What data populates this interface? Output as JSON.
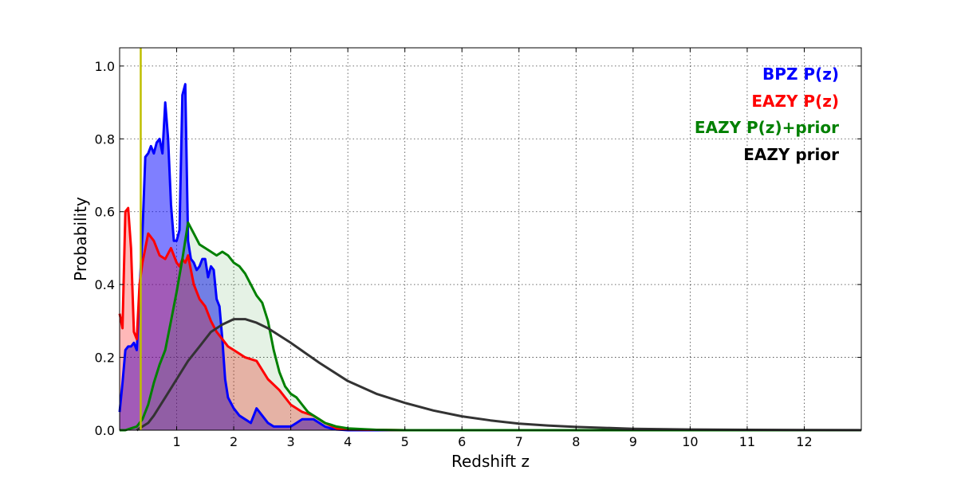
{
  "chart_data": {
    "type": "area",
    "title": "",
    "xlabel": "Redshift z",
    "ylabel": "Probability",
    "xlim": [
      0,
      13
    ],
    "ylim": [
      0,
      1.05
    ],
    "xticks": [
      1,
      2,
      3,
      4,
      5,
      6,
      7,
      8,
      9,
      10,
      11,
      12
    ],
    "yticks": [
      0.0,
      0.2,
      0.4,
      0.6,
      0.8,
      1.0
    ],
    "ytick_labels": [
      "0.0",
      "0.2",
      "0.4",
      "0.6",
      "0.8",
      "1.0"
    ],
    "grid": true,
    "legend_placement": "top-right",
    "vertical_line": {
      "x": 0.37,
      "color": "#bfbf00"
    },
    "series": [
      {
        "name": "BPZ P(z)",
        "color": "#0000ff",
        "fill_color": "#0000ff",
        "fill_opacity": 0.5,
        "x": [
          0.0,
          0.05,
          0.1,
          0.15,
          0.2,
          0.25,
          0.3,
          0.35,
          0.4,
          0.45,
          0.5,
          0.55,
          0.6,
          0.65,
          0.7,
          0.75,
          0.8,
          0.85,
          0.9,
          0.95,
          1.0,
          1.05,
          1.1,
          1.15,
          1.2,
          1.25,
          1.3,
          1.35,
          1.4,
          1.45,
          1.5,
          1.55,
          1.6,
          1.65,
          1.7,
          1.75,
          1.8,
          1.85,
          1.9,
          2.0,
          2.1,
          2.2,
          2.3,
          2.4,
          2.5,
          2.6,
          2.7,
          2.8,
          2.9,
          3.0,
          3.1,
          3.2,
          3.3,
          3.4,
          3.5,
          3.6,
          3.7,
          3.8,
          3.9,
          4.0,
          4.5,
          5,
          6,
          7,
          8,
          9,
          10,
          11,
          12,
          13
        ],
        "values": [
          0.05,
          0.13,
          0.22,
          0.23,
          0.23,
          0.24,
          0.22,
          0.38,
          0.54,
          0.75,
          0.76,
          0.78,
          0.76,
          0.79,
          0.8,
          0.76,
          0.9,
          0.8,
          0.62,
          0.52,
          0.52,
          0.55,
          0.92,
          0.95,
          0.52,
          0.47,
          0.46,
          0.44,
          0.45,
          0.47,
          0.47,
          0.42,
          0.45,
          0.44,
          0.36,
          0.34,
          0.25,
          0.14,
          0.09,
          0.06,
          0.04,
          0.03,
          0.02,
          0.06,
          0.04,
          0.02,
          0.01,
          0.01,
          0.01,
          0.01,
          0.02,
          0.03,
          0.03,
          0.03,
          0.02,
          0.01,
          0.005,
          0.002,
          0.001,
          0.0,
          0.0,
          0.0,
          0.0,
          0.0,
          0.0,
          0.0,
          0.0,
          0.0,
          0.0,
          0.0
        ]
      },
      {
        "name": "EAZY P(z)",
        "color": "#ff0000",
        "fill_color": "#ff0000",
        "fill_opacity": 0.28,
        "x": [
          0.0,
          0.05,
          0.1,
          0.15,
          0.2,
          0.25,
          0.3,
          0.35,
          0.4,
          0.45,
          0.5,
          0.6,
          0.7,
          0.8,
          0.9,
          1.0,
          1.05,
          1.1,
          1.15,
          1.2,
          1.25,
          1.3,
          1.4,
          1.5,
          1.6,
          1.7,
          1.8,
          1.9,
          2.0,
          2.2,
          2.4,
          2.6,
          2.8,
          3.0,
          3.2,
          3.4,
          3.6,
          3.8,
          4.0,
          4.5,
          5,
          6,
          7,
          8,
          9,
          10,
          11,
          12,
          13
        ],
        "values": [
          0.32,
          0.28,
          0.6,
          0.61,
          0.5,
          0.27,
          0.25,
          0.4,
          0.46,
          0.5,
          0.54,
          0.52,
          0.48,
          0.47,
          0.5,
          0.46,
          0.45,
          0.47,
          0.46,
          0.48,
          0.44,
          0.4,
          0.36,
          0.34,
          0.3,
          0.27,
          0.25,
          0.23,
          0.22,
          0.2,
          0.19,
          0.14,
          0.11,
          0.07,
          0.05,
          0.04,
          0.02,
          0.005,
          0.002,
          0.001,
          0.0,
          0.0,
          0.0,
          0.0,
          0.0,
          0.0,
          0.0,
          0.0,
          0.0
        ]
      },
      {
        "name": "EAZY P(z)+prior",
        "color": "#008000",
        "fill_color": "#008000",
        "fill_opacity": 0.1,
        "x": [
          0.0,
          0.1,
          0.2,
          0.3,
          0.4,
          0.5,
          0.6,
          0.7,
          0.8,
          0.9,
          1.0,
          1.1,
          1.2,
          1.3,
          1.4,
          1.5,
          1.6,
          1.7,
          1.8,
          1.9,
          2.0,
          2.1,
          2.2,
          2.3,
          2.4,
          2.5,
          2.6,
          2.7,
          2.8,
          2.9,
          3.0,
          3.1,
          3.2,
          3.3,
          3.4,
          3.5,
          3.6,
          3.7,
          3.8,
          4.0,
          4.5,
          5,
          6,
          7,
          8,
          9,
          10,
          11,
          12,
          13
        ],
        "values": [
          0.0,
          0.0,
          0.005,
          0.01,
          0.03,
          0.07,
          0.13,
          0.18,
          0.22,
          0.3,
          0.38,
          0.47,
          0.57,
          0.54,
          0.51,
          0.5,
          0.49,
          0.48,
          0.49,
          0.48,
          0.46,
          0.45,
          0.43,
          0.4,
          0.37,
          0.35,
          0.3,
          0.22,
          0.16,
          0.12,
          0.1,
          0.09,
          0.07,
          0.05,
          0.04,
          0.03,
          0.02,
          0.015,
          0.01,
          0.005,
          0.001,
          0.0,
          0.0,
          0.0,
          0.0,
          0.0,
          0.0,
          0.0,
          0.0,
          0.0
        ]
      },
      {
        "name": "EAZY prior",
        "color": "#333333",
        "fill_color": "",
        "fill_opacity": 0,
        "x": [
          0.3,
          0.4,
          0.5,
          0.6,
          0.8,
          1.0,
          1.2,
          1.4,
          1.6,
          1.8,
          2.0,
          2.2,
          2.4,
          2.6,
          2.8,
          3.0,
          3.5,
          4.0,
          4.5,
          5.0,
          5.5,
          6.0,
          6.5,
          7.0,
          7.5,
          8.0,
          9.0,
          10.0,
          11.0,
          12.0,
          13.0
        ],
        "values": [
          0.0,
          0.01,
          0.02,
          0.04,
          0.09,
          0.14,
          0.19,
          0.23,
          0.27,
          0.29,
          0.305,
          0.305,
          0.295,
          0.28,
          0.26,
          0.24,
          0.185,
          0.135,
          0.1,
          0.075,
          0.054,
          0.038,
          0.027,
          0.018,
          0.013,
          0.009,
          0.004,
          0.002,
          0.001,
          0.0005,
          0.0002
        ]
      }
    ]
  }
}
